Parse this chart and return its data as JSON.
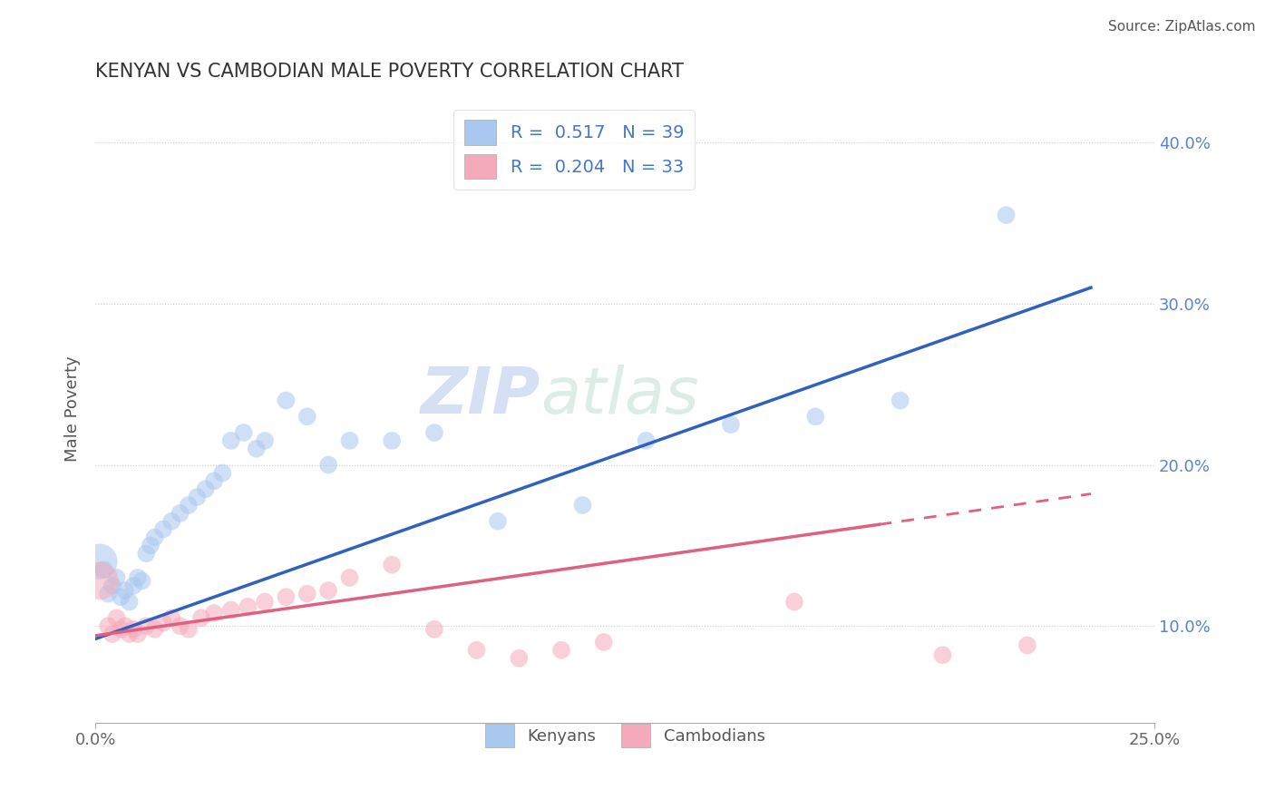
{
  "title": "KENYAN VS CAMBODIAN MALE POVERTY CORRELATION CHART",
  "source": "Source: ZipAtlas.com",
  "ylabel": "Male Poverty",
  "yticks": [
    0.1,
    0.2,
    0.3,
    0.4
  ],
  "ytick_labels": [
    "10.0%",
    "20.0%",
    "30.0%",
    "40.0%"
  ],
  "xlim": [
    0.0,
    0.25
  ],
  "ylim": [
    0.04,
    0.43
  ],
  "kenyan_R": 0.517,
  "kenyan_N": 39,
  "cambodian_R": 0.204,
  "cambodian_N": 33,
  "kenyan_color": "#A8C8F0",
  "cambodian_color": "#F5AABB",
  "kenyan_line_color": "#3060C0",
  "cambodian_line_color": "#E06080",
  "watermark_zip": "ZIP",
  "watermark_atlas": "atlas",
  "kenyan_x": [
    0.002,
    0.003,
    0.004,
    0.005,
    0.006,
    0.007,
    0.008,
    0.009,
    0.01,
    0.011,
    0.012,
    0.013,
    0.014,
    0.016,
    0.018,
    0.02,
    0.022,
    0.024,
    0.026,
    0.028,
    0.03,
    0.032,
    0.035,
    0.038,
    0.04,
    0.045,
    0.05,
    0.055,
    0.06,
    0.07,
    0.08,
    0.095,
    0.115,
    0.13,
    0.15,
    0.17,
    0.19,
    0.215,
    0.001
  ],
  "kenyan_y": [
    0.135,
    0.12,
    0.125,
    0.13,
    0.118,
    0.122,
    0.115,
    0.125,
    0.13,
    0.128,
    0.145,
    0.15,
    0.155,
    0.16,
    0.165,
    0.17,
    0.175,
    0.18,
    0.185,
    0.19,
    0.195,
    0.215,
    0.22,
    0.21,
    0.215,
    0.24,
    0.23,
    0.2,
    0.215,
    0.215,
    0.22,
    0.165,
    0.175,
    0.215,
    0.225,
    0.23,
    0.24,
    0.355,
    0.14
  ],
  "kenyan_sizes": [
    200,
    200,
    200,
    200,
    200,
    200,
    200,
    200,
    200,
    200,
    200,
    200,
    200,
    200,
    200,
    200,
    200,
    200,
    200,
    200,
    200,
    200,
    200,
    200,
    200,
    200,
    200,
    200,
    200,
    200,
    200,
    200,
    200,
    200,
    200,
    200,
    200,
    200,
    800
  ],
  "cambodian_x": [
    0.003,
    0.004,
    0.005,
    0.006,
    0.007,
    0.008,
    0.009,
    0.01,
    0.012,
    0.014,
    0.016,
    0.018,
    0.02,
    0.022,
    0.025,
    0.028,
    0.032,
    0.036,
    0.04,
    0.045,
    0.05,
    0.055,
    0.06,
    0.07,
    0.08,
    0.09,
    0.1,
    0.11,
    0.12,
    0.165,
    0.2,
    0.22,
    0.001
  ],
  "cambodian_y": [
    0.1,
    0.095,
    0.105,
    0.098,
    0.1,
    0.095,
    0.098,
    0.095,
    0.1,
    0.098,
    0.102,
    0.105,
    0.1,
    0.098,
    0.105,
    0.108,
    0.11,
    0.112,
    0.115,
    0.118,
    0.12,
    0.122,
    0.13,
    0.138,
    0.098,
    0.085,
    0.08,
    0.085,
    0.09,
    0.115,
    0.082,
    0.088,
    0.128
  ],
  "cambodian_sizes": [
    200,
    200,
    200,
    200,
    200,
    200,
    200,
    200,
    200,
    200,
    200,
    200,
    200,
    200,
    200,
    200,
    200,
    200,
    200,
    200,
    200,
    200,
    200,
    200,
    200,
    200,
    200,
    200,
    200,
    200,
    200,
    200,
    900
  ],
  "blue_line_x0": 0.0,
  "blue_line_y0": 0.092,
  "blue_line_x1": 0.235,
  "blue_line_y1": 0.31,
  "pink_line_x0": 0.0,
  "pink_line_y0": 0.094,
  "pink_line_solid_x1": 0.185,
  "pink_line_solid_y1": 0.163,
  "pink_line_dash_x1": 0.235,
  "pink_line_dash_y1": 0.182
}
